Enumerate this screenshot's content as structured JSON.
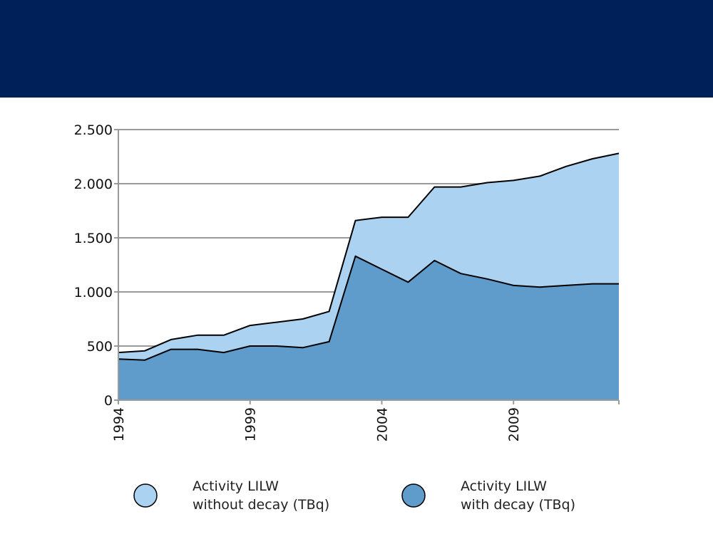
{
  "colors": {
    "header": "#00205a",
    "without_decay_fill": "#abd2f0",
    "with_decay_fill": "#5f9ccb",
    "line": "#000000",
    "grid": "#9a9a9a"
  },
  "chart_data": {
    "type": "area",
    "stacked": false,
    "title": "",
    "xlabel": "",
    "ylabel": "",
    "x": [
      1994,
      1995,
      1996,
      1997,
      1998,
      1999,
      2000,
      2001,
      2002,
      2003,
      2004,
      2005,
      2006,
      2007,
      2008,
      2009,
      2010,
      2011,
      2012,
      2013
    ],
    "xlim": [
      1994,
      2013
    ],
    "ylim": [
      0,
      2500
    ],
    "y_ticks": [
      0,
      500,
      1000,
      1500,
      2000,
      2500
    ],
    "y_tick_labels": [
      "0",
      "500",
      "1.000",
      "1.500",
      "2.000",
      "2.500"
    ],
    "x_ticks": [
      1994,
      1999,
      2004,
      2009
    ],
    "x_tick_labels": [
      "1994",
      "1999",
      "2004",
      "2009"
    ],
    "grid": "horizontal",
    "legend_position": "bottom",
    "series": [
      {
        "name": "Activity LILW without decay (TBq)",
        "legend_lines": [
          "Activity LILW",
          "without decay (TBq)"
        ],
        "color": "#abd2f0",
        "values": [
          440,
          455,
          560,
          600,
          600,
          690,
          720,
          750,
          820,
          1660,
          1690,
          1690,
          1970,
          1970,
          2010,
          2030,
          2070,
          2160,
          2230,
          2280
        ]
      },
      {
        "name": "Activity LILW with decay (TBq)",
        "legend_lines": [
          "Activity LILW",
          "with decay (TBq)"
        ],
        "color": "#5f9ccb",
        "values": [
          380,
          370,
          470,
          470,
          440,
          500,
          500,
          485,
          540,
          1330,
          1210,
          1090,
          1290,
          1170,
          1120,
          1060,
          1045,
          1060,
          1075,
          1075
        ]
      }
    ]
  }
}
